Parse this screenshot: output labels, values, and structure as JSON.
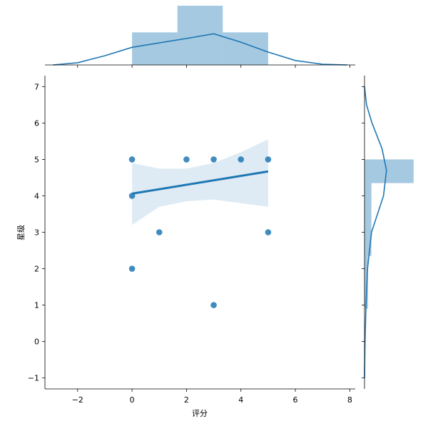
{
  "chart_data": {
    "type": "scatter",
    "title": "",
    "xlabel": "评分",
    "ylabel": "星级",
    "xlim": [
      -3.2,
      8.2
    ],
    "ylim": [
      -1.3,
      7.3
    ],
    "x_ticks": [
      -2,
      0,
      2,
      4,
      6,
      8
    ],
    "y_ticks": [
      -1,
      0,
      1,
      2,
      3,
      4,
      5,
      6,
      7
    ],
    "x_tick_labels": [
      "−2",
      "0",
      "2",
      "4",
      "6",
      "8"
    ],
    "y_tick_labels": [
      "−1",
      "0",
      "1",
      "2",
      "3",
      "4",
      "5",
      "6",
      "7"
    ],
    "color": "#1f77b4",
    "grid": false,
    "points": [
      {
        "x": 0,
        "y": 5
      },
      {
        "x": 0,
        "y": 4
      },
      {
        "x": 0,
        "y": 2
      },
      {
        "x": 1,
        "y": 3
      },
      {
        "x": 2,
        "y": 5
      },
      {
        "x": 3,
        "y": 5
      },
      {
        "x": 3,
        "y": 1
      },
      {
        "x": 4,
        "y": 5
      },
      {
        "x": 5,
        "y": 5
      },
      {
        "x": 5,
        "y": 3
      }
    ],
    "regression": {
      "x_start": 0,
      "x_end": 5,
      "y_start": 4.06,
      "y_end": 4.67
    },
    "confidence_band": [
      {
        "x": 0,
        "lower": 3.2,
        "upper": 4.9
      },
      {
        "x": 1,
        "lower": 3.7,
        "upper": 4.75
      },
      {
        "x": 2,
        "lower": 3.85,
        "upper": 4.75
      },
      {
        "x": 3,
        "lower": 3.9,
        "upper": 4.9
      },
      {
        "x": 4,
        "lower": 3.8,
        "upper": 5.2
      },
      {
        "x": 5,
        "lower": 3.7,
        "upper": 5.55
      }
    ],
    "top_histogram": {
      "bins": [
        {
          "x0": 0,
          "x1": 1.667,
          "height": 0.55
        },
        {
          "x0": 1.667,
          "x1": 3.333,
          "height": 1.0
        },
        {
          "x0": 3.333,
          "x1": 5,
          "height": 0.55
        }
      ],
      "kde": [
        {
          "x": -2.9,
          "d": 0.0
        },
        {
          "x": -2.0,
          "d": 0.06
        },
        {
          "x": -1.0,
          "d": 0.25
        },
        {
          "x": 0.0,
          "d": 0.48
        },
        {
          "x": 1.0,
          "d": 0.6
        },
        {
          "x": 2.0,
          "d": 0.72
        },
        {
          "x": 3.0,
          "d": 0.85
        },
        {
          "x": 4.0,
          "d": 0.62
        },
        {
          "x": 5.0,
          "d": 0.35
        },
        {
          "x": 6.0,
          "d": 0.12
        },
        {
          "x": 7.0,
          "d": 0.02
        },
        {
          "x": 7.9,
          "d": 0.0
        }
      ]
    },
    "right_histogram": {
      "bins": [
        {
          "y0": 0.9,
          "y1": 2.35,
          "width": 0.07
        },
        {
          "y0": 2.35,
          "y1": 3.2,
          "width": 0.14
        },
        {
          "y0": 3.2,
          "y1": 4.35,
          "width": 0.14
        },
        {
          "y0": 4.35,
          "y1": 5.0,
          "width": 1.0
        }
      ],
      "kde": [
        {
          "y": -1.0,
          "d": 0.0
        },
        {
          "y": 0.0,
          "d": 0.01
        },
        {
          "y": 1.0,
          "d": 0.03
        },
        {
          "y": 2.0,
          "d": 0.06
        },
        {
          "y": 3.0,
          "d": 0.14
        },
        {
          "y": 4.0,
          "d": 0.38
        },
        {
          "y": 4.7,
          "d": 0.44
        },
        {
          "y": 5.3,
          "d": 0.35
        },
        {
          "y": 6.0,
          "d": 0.15
        },
        {
          "y": 6.5,
          "d": 0.04
        },
        {
          "y": 7.0,
          "d": 0.0
        }
      ]
    }
  }
}
